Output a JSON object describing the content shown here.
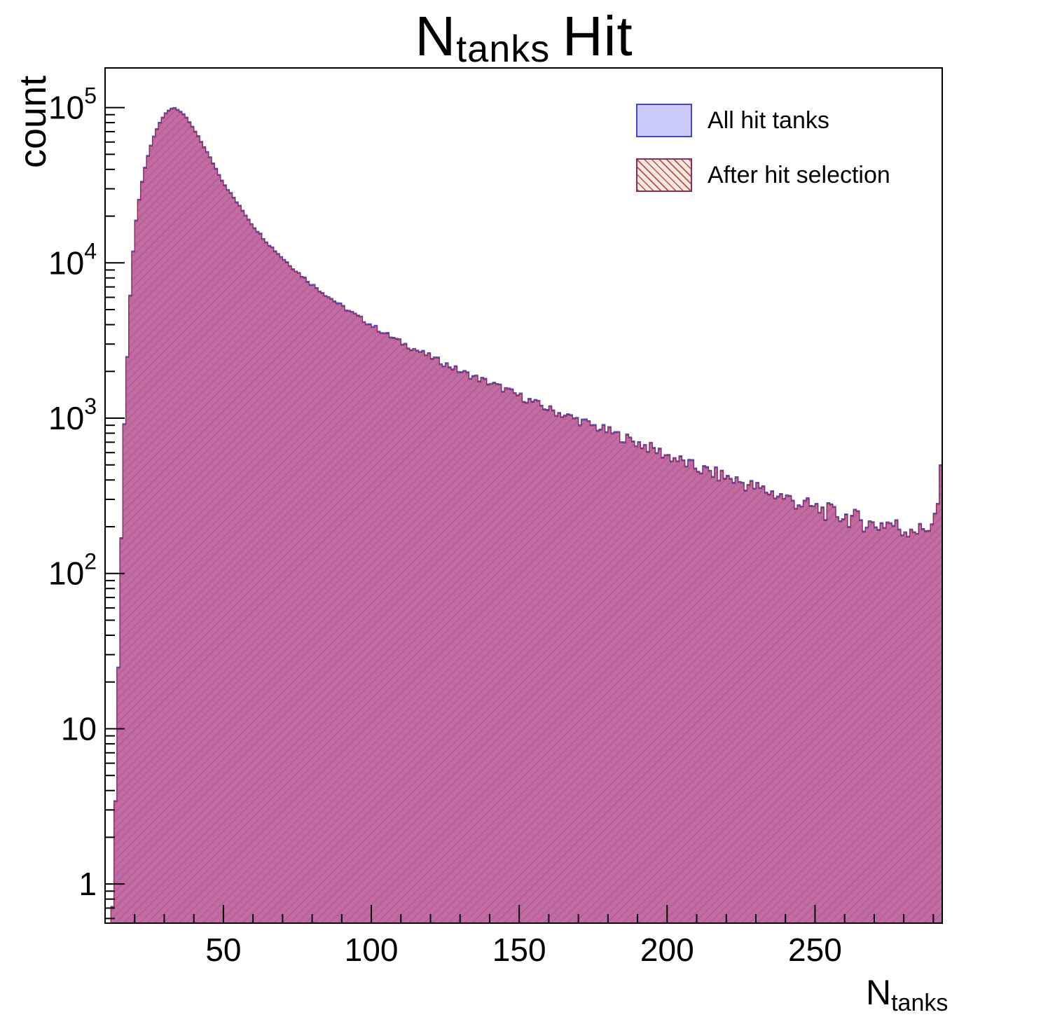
{
  "chart_data": {
    "type": "histogram",
    "title": {
      "main": "N",
      "sub": "tanks",
      "rest": "Hit"
    },
    "xlabel": {
      "main": "N",
      "sub": "tanks"
    },
    "ylabel": "count",
    "x_range": [
      10,
      293
    ],
    "y_range": [
      0.56,
      180000
    ],
    "y_log": true,
    "bin_width": 1,
    "x_major_ticks": [
      50,
      100,
      150,
      200,
      250
    ],
    "x_minor_step": 10,
    "y_major_ticks": [
      1,
      10,
      100,
      1000,
      10000,
      100000
    ],
    "frame_color": "#000000",
    "legend": [
      {
        "label": "All hit tanks",
        "fill": "#ccccfa",
        "edge": "#4646c8",
        "hatch": false
      },
      {
        "label": "After hit selection",
        "fill": "#f0ead9",
        "edge": "#8b2e5c",
        "hatch": true,
        "hatch_color": "#bb2850"
      }
    ],
    "series": [
      {
        "name": "All hit tanks",
        "scale": 1.0,
        "fill": "#c9c9f8",
        "edge": "#4646c8",
        "hatch": false
      },
      {
        "name": "After hit selection",
        "scale": 0.985,
        "fill": "rgba(186,30,92,0.55)",
        "edge": "#8b2e5c",
        "hatch": true
      }
    ],
    "anchors": [
      [
        12,
        0.7
      ],
      [
        13,
        1
      ],
      [
        14,
        8
      ],
      [
        15,
        60
      ],
      [
        16,
        500
      ],
      [
        17,
        1500
      ],
      [
        18,
        4200
      ],
      [
        19,
        9000
      ],
      [
        20,
        16000
      ],
      [
        22,
        30000
      ],
      [
        24,
        46000
      ],
      [
        26,
        62000
      ],
      [
        28,
        78000
      ],
      [
        30,
        90000
      ],
      [
        32,
        98000
      ],
      [
        33,
        101000
      ],
      [
        34,
        99500
      ],
      [
        36,
        93000
      ],
      [
        38,
        84000
      ],
      [
        40,
        73000
      ],
      [
        42,
        63000
      ],
      [
        44,
        54000
      ],
      [
        46,
        46000
      ],
      [
        48,
        39000
      ],
      [
        50,
        33000
      ],
      [
        55,
        24000
      ],
      [
        60,
        17500
      ],
      [
        65,
        13500
      ],
      [
        70,
        10800
      ],
      [
        75,
        8800
      ],
      [
        80,
        7300
      ],
      [
        85,
        6200
      ],
      [
        90,
        5300
      ],
      [
        95,
        4600
      ],
      [
        100,
        4000
      ],
      [
        105,
        3500
      ],
      [
        110,
        3100
      ],
      [
        115,
        2780
      ],
      [
        120,
        2500
      ],
      [
        125,
        2250
      ],
      [
        130,
        2020
      ],
      [
        135,
        1850
      ],
      [
        140,
        1700
      ],
      [
        145,
        1550
      ],
      [
        150,
        1400
      ],
      [
        155,
        1270
      ],
      [
        160,
        1150
      ],
      [
        165,
        1060
      ],
      [
        170,
        980
      ],
      [
        175,
        900
      ],
      [
        180,
        830
      ],
      [
        185,
        760
      ],
      [
        190,
        700
      ],
      [
        195,
        640
      ],
      [
        200,
        580
      ],
      [
        205,
        530
      ],
      [
        210,
        480
      ],
      [
        215,
        450
      ],
      [
        220,
        420
      ],
      [
        225,
        390
      ],
      [
        230,
        360
      ],
      [
        235,
        335
      ],
      [
        240,
        310
      ],
      [
        245,
        285
      ],
      [
        250,
        265
      ],
      [
        255,
        250
      ],
      [
        260,
        235
      ],
      [
        265,
        225
      ],
      [
        270,
        205
      ],
      [
        275,
        215
      ],
      [
        280,
        190
      ],
      [
        283,
        205
      ],
      [
        285,
        185
      ],
      [
        287,
        195
      ],
      [
        289,
        210
      ],
      [
        291,
        240
      ],
      [
        292,
        330
      ],
      [
        293,
        650
      ]
    ]
  }
}
